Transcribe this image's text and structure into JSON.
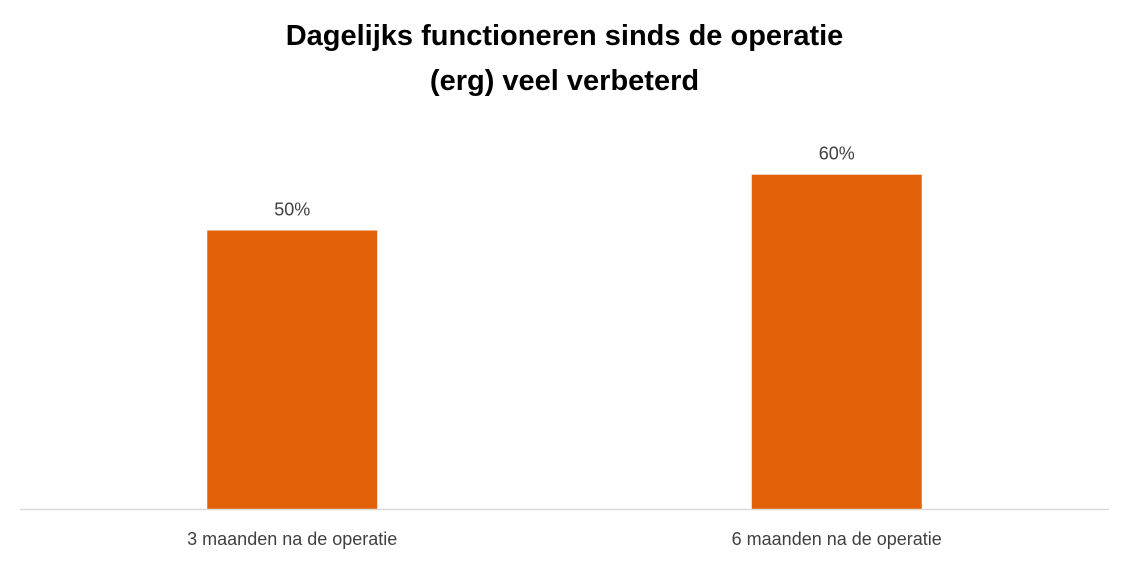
{
  "chart_data": {
    "type": "bar",
    "title_lines": [
      "Dagelijks functioneren sinds de operatie",
      "(erg) veel verbeterd"
    ],
    "categories": [
      "3 maanden na de operatie",
      "6 maanden na de operatie"
    ],
    "values": [
      50,
      60
    ],
    "value_labels": [
      "50%",
      "60%"
    ],
    "ylim": [
      0,
      70
    ],
    "grid": false,
    "legend": "none",
    "bar_color": "#E36209",
    "axis_color": "#D9D9D9",
    "label_color": "#404040"
  }
}
